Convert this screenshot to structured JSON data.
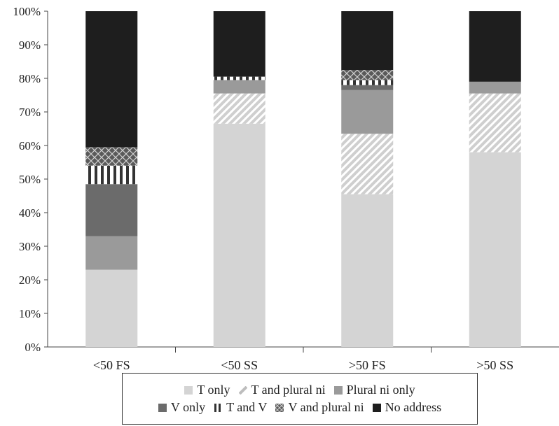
{
  "chart_data": {
    "type": "bar",
    "stacked": true,
    "categories": [
      "<50 FS",
      "<50 SS",
      ">50 FS",
      ">50 SS"
    ],
    "series": [
      {
        "name": "T only",
        "values": [
          23,
          66.5,
          45.5,
          58
        ],
        "color": "#d4d4d4",
        "pattern": "solid"
      },
      {
        "name": "T and plural ni",
        "values": [
          0,
          9,
          18,
          17.5
        ],
        "color": "#c8c8c8",
        "pattern": "diagonal-stripes"
      },
      {
        "name": "Plural ni only",
        "values": [
          10,
          4,
          13,
          3.5
        ],
        "color": "#9a9a9a",
        "pattern": "solid"
      },
      {
        "name": "V only",
        "values": [
          15.5,
          0,
          1.5,
          0
        ],
        "color": "#6b6b6b",
        "pattern": "solid"
      },
      {
        "name": "T and V",
        "values": [
          5.5,
          1,
          1.5,
          0
        ],
        "color": "#333333",
        "pattern": "vertical-stripes"
      },
      {
        "name": "V and plural ni",
        "values": [
          5.5,
          0,
          3,
          0
        ],
        "color": "#555555",
        "pattern": "crosshatch"
      },
      {
        "name": "No address",
        "values": [
          40.5,
          19.5,
          17.5,
          21
        ],
        "color": "#1e1e1e",
        "pattern": "solid"
      }
    ],
    "yticks": [
      "0%",
      "10%",
      "20%",
      "30%",
      "40%",
      "50%",
      "60%",
      "70%",
      "80%",
      "90%",
      "100%"
    ],
    "ylim": [
      0,
      100
    ],
    "legend_position": "bottom"
  }
}
